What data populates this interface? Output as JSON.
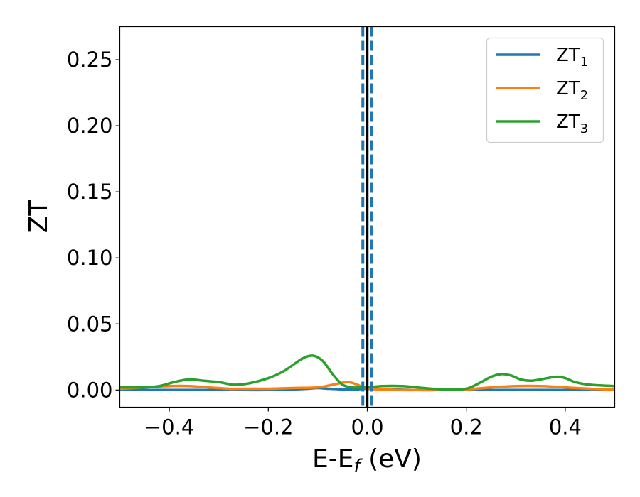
{
  "chart_data": {
    "type": "line",
    "title": "",
    "xlabel_main": "E-E",
    "xlabel_sub": "f",
    "xlabel_suffix": " (eV)",
    "ylabel": "ZT",
    "xlim": [
      -0.5,
      0.5
    ],
    "ylim": [
      -0.013,
      0.275
    ],
    "xticks": [
      -0.4,
      -0.2,
      0.0,
      0.2,
      0.4
    ],
    "xtick_labels": [
      "−0.4",
      "−0.2",
      "0.0",
      "0.2",
      "0.4"
    ],
    "yticks": [
      0.0,
      0.05,
      0.1,
      0.15,
      0.2,
      0.25
    ],
    "ytick_labels": [
      "0.00",
      "0.05",
      "0.10",
      "0.15",
      "0.20",
      "0.25"
    ],
    "grid": false,
    "legend_position": "top-right",
    "vertical_lines": [
      {
        "x": -0.009,
        "style": "dashed",
        "color": "#1f77b4"
      },
      {
        "x": 0.009,
        "style": "dashed",
        "color": "#1f77b4"
      },
      {
        "x": 0.0,
        "style": "solid",
        "color": "#000000"
      }
    ],
    "series": [
      {
        "name": "ZT",
        "name_sub": "1",
        "color": "#1f77b4",
        "x": [
          -0.5,
          -0.45,
          -0.4,
          -0.35,
          -0.3,
          -0.25,
          -0.2,
          -0.15,
          -0.12,
          -0.1,
          -0.08,
          -0.05,
          -0.02,
          0.0,
          0.05,
          0.1,
          0.15,
          0.2,
          0.25,
          0.3,
          0.35,
          0.4,
          0.45,
          0.5
        ],
        "y": [
          0.0,
          0.0,
          0.0,
          0.0,
          0.0,
          0.0,
          0.0,
          0.0005,
          0.001,
          0.0015,
          0.001,
          0.0005,
          0.0005,
          0.001,
          0.0005,
          0.0,
          0.0,
          0.0,
          0.0,
          0.0,
          0.0,
          0.0,
          0.0,
          0.0
        ]
      },
      {
        "name": "ZT",
        "name_sub": "2",
        "color": "#ff7f0e",
        "x": [
          -0.5,
          -0.45,
          -0.4,
          -0.36,
          -0.32,
          -0.28,
          -0.25,
          -0.2,
          -0.15,
          -0.1,
          -0.07,
          -0.04,
          -0.02,
          0.0,
          0.03,
          0.07,
          0.1,
          0.15,
          0.2,
          0.25,
          0.3,
          0.35,
          0.4,
          0.45,
          0.5
        ],
        "y": [
          0.001,
          0.002,
          0.003,
          0.003,
          0.002,
          0.001,
          0.001,
          0.001,
          0.0015,
          0.002,
          0.004,
          0.006,
          0.004,
          0.001,
          0.0005,
          0.0,
          0.0,
          0.0,
          0.0005,
          0.002,
          0.003,
          0.003,
          0.002,
          0.001,
          0.0005
        ]
      },
      {
        "name": "ZT",
        "name_sub": "3",
        "color": "#2ca02c",
        "x": [
          -0.5,
          -0.45,
          -0.42,
          -0.39,
          -0.36,
          -0.33,
          -0.3,
          -0.27,
          -0.24,
          -0.2,
          -0.17,
          -0.15,
          -0.13,
          -0.11,
          -0.09,
          -0.07,
          -0.05,
          -0.03,
          -0.015,
          0.0,
          0.03,
          0.07,
          0.1,
          0.13,
          0.16,
          0.2,
          0.23,
          0.25,
          0.27,
          0.29,
          0.31,
          0.33,
          0.35,
          0.38,
          0.4,
          0.42,
          0.45,
          0.5
        ],
        "y": [
          0.002,
          0.002,
          0.003,
          0.006,
          0.008,
          0.007,
          0.006,
          0.004,
          0.005,
          0.009,
          0.014,
          0.019,
          0.024,
          0.026,
          0.022,
          0.012,
          0.004,
          0.002,
          0.002,
          0.002,
          0.003,
          0.003,
          0.002,
          0.001,
          0.0005,
          0.001,
          0.006,
          0.01,
          0.012,
          0.011,
          0.008,
          0.007,
          0.008,
          0.01,
          0.009,
          0.006,
          0.004,
          0.003
        ]
      }
    ]
  }
}
